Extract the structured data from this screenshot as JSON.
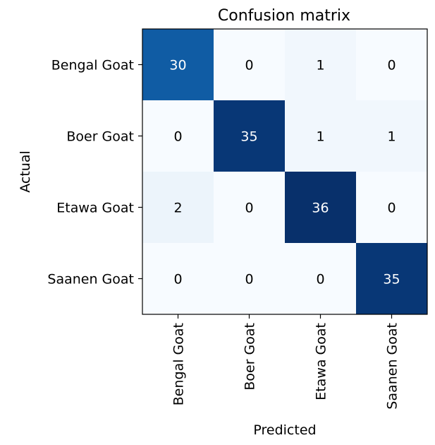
{
  "chart_data": {
    "type": "heatmap",
    "title": "Confusion matrix",
    "xlabel": "Predicted",
    "ylabel": "Actual",
    "x_categories": [
      "Bengal Goat",
      "Boer Goat",
      "Etawa Goat",
      "Saanen Goat"
    ],
    "y_categories": [
      "Bengal Goat",
      "Boer Goat",
      "Etawa Goat",
      "Saanen Goat"
    ],
    "values": [
      [
        30,
        0,
        1,
        0
      ],
      [
        0,
        35,
        1,
        1
      ],
      [
        2,
        0,
        36,
        0
      ],
      [
        0,
        0,
        0,
        35
      ]
    ],
    "colormap": "Blues",
    "grid": false,
    "colors": {
      "low": "#f7fbff",
      "high": "#08306b",
      "text_dark": "#000000",
      "text_light": "#ffffff"
    }
  }
}
